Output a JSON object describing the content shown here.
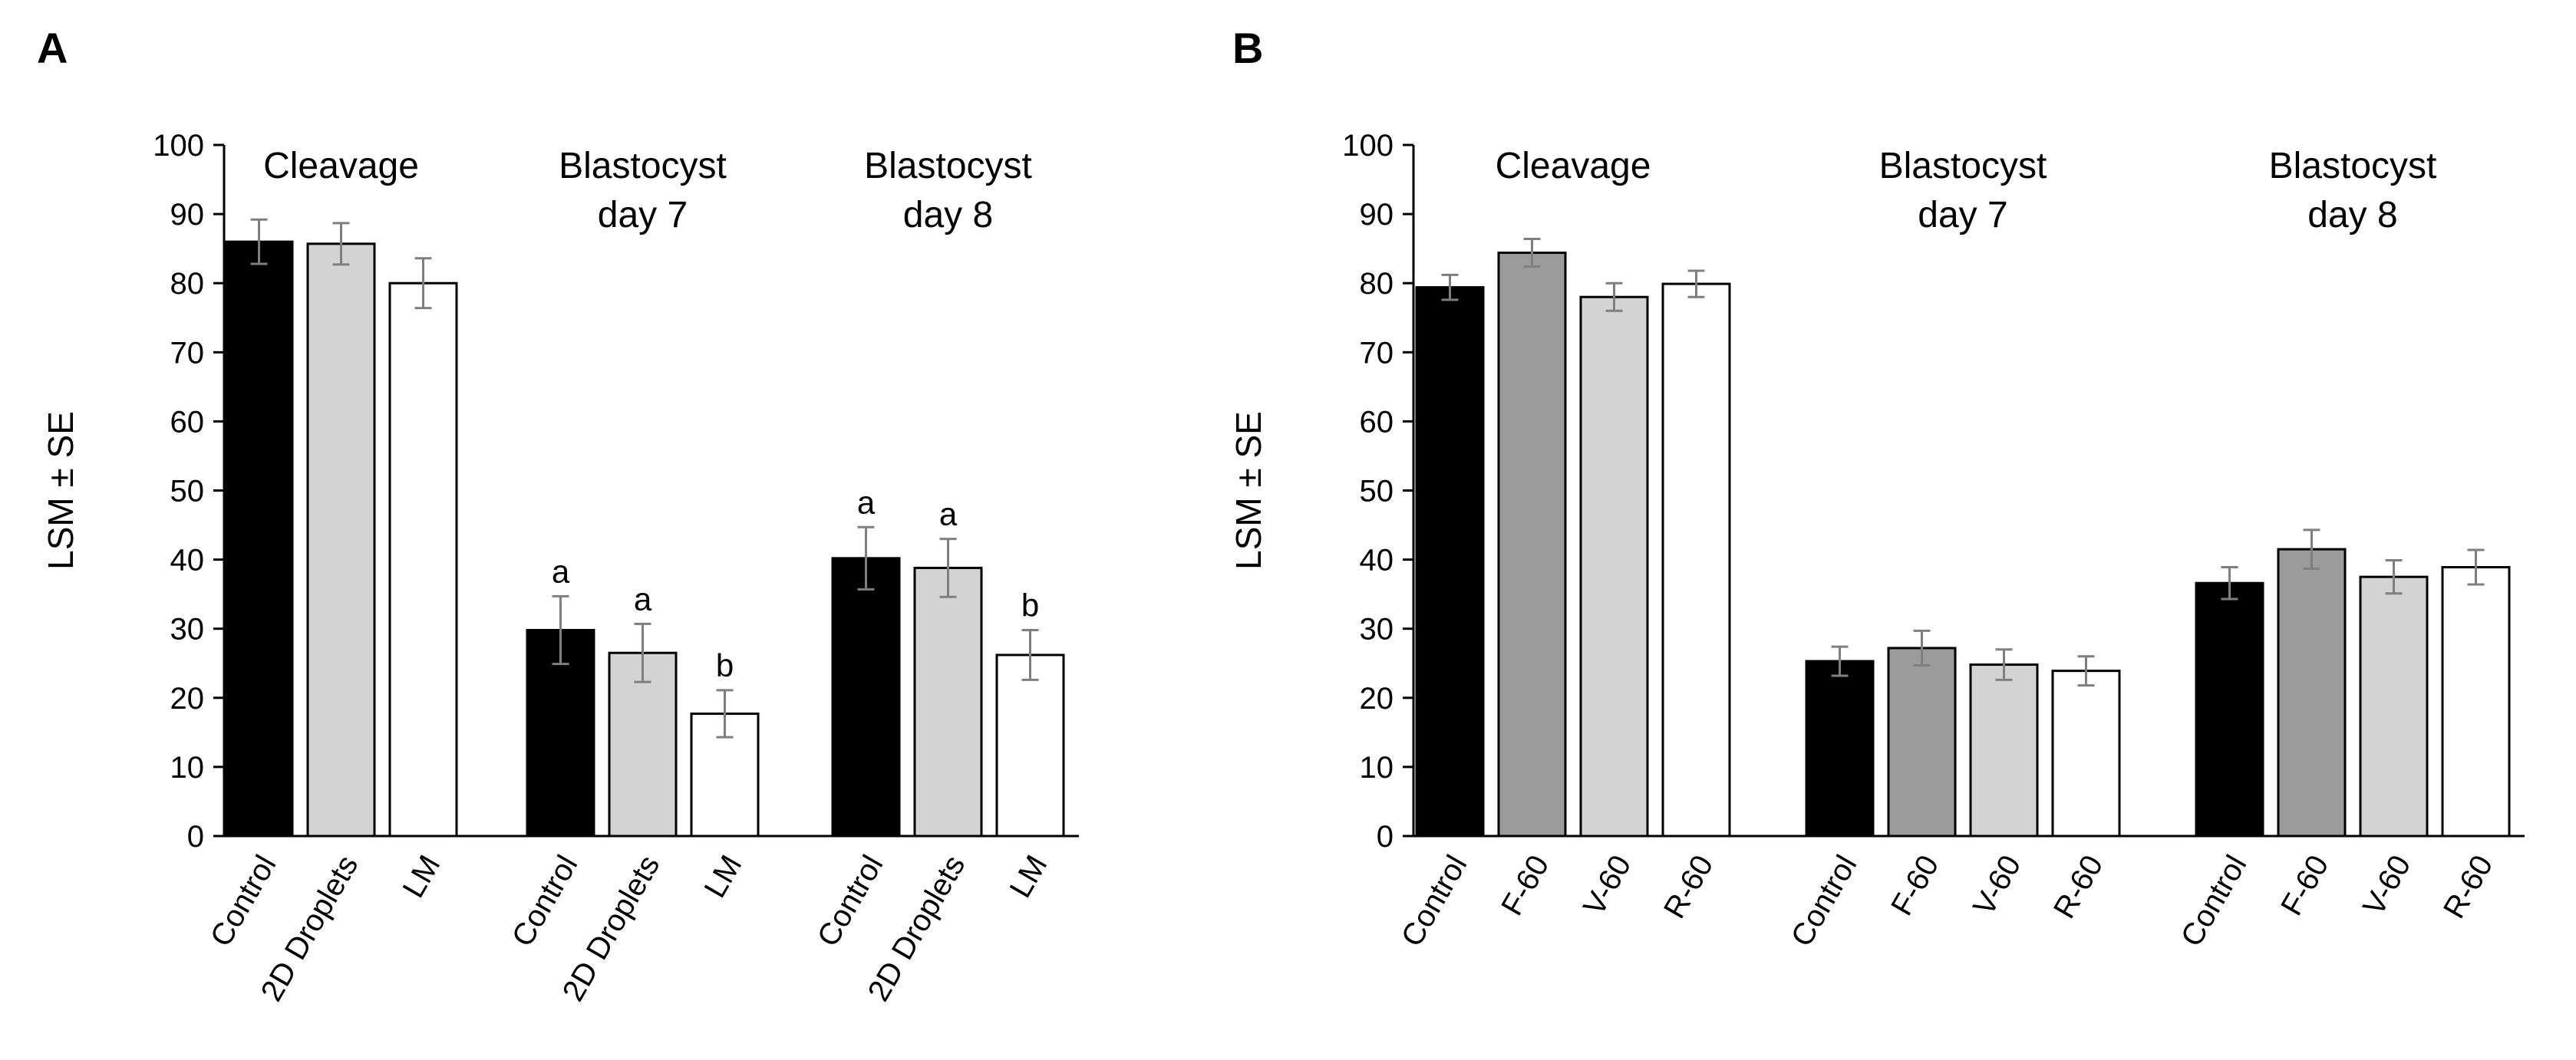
{
  "chart_data": [
    {
      "type": "bar",
      "panel": "A",
      "ylabel": "LSM ± SE",
      "ylim": [
        0,
        100
      ],
      "yticks": [
        0,
        10,
        20,
        30,
        40,
        50,
        60,
        70,
        80,
        90,
        100
      ],
      "groups": [
        {
          "title": [
            "Cleavage"
          ],
          "categories": [
            "Control",
            "2D Droplets",
            "LM"
          ],
          "values": [
            86,
            85.7,
            80
          ],
          "errors": [
            3.2,
            3,
            3.6
          ],
          "letters": [
            "",
            "",
            ""
          ]
        },
        {
          "title": [
            "Blastocyst",
            "day 7"
          ],
          "categories": [
            "Control",
            "2D Droplets",
            "LM"
          ],
          "values": [
            29.8,
            26.5,
            17.7
          ],
          "errors": [
            4.9,
            4.2,
            3.4
          ],
          "letters": [
            "a",
            "a",
            "b"
          ]
        },
        {
          "title": [
            "Blastocyst",
            "day 8"
          ],
          "categories": [
            "Control",
            "2D Droplets",
            "LM"
          ],
          "values": [
            40.2,
            38.8,
            26.2
          ],
          "errors": [
            4.5,
            4.2,
            3.6
          ],
          "letters": [
            "a",
            "a",
            "b"
          ]
        }
      ],
      "bar_colors": [
        "#000000",
        "#d3d3d3",
        "#ffffff"
      ]
    },
    {
      "type": "bar",
      "panel": "B",
      "ylabel": "LSM ± SE",
      "ylim": [
        0,
        100
      ],
      "yticks": [
        0,
        10,
        20,
        30,
        40,
        50,
        60,
        70,
        80,
        90,
        100
      ],
      "groups": [
        {
          "title": [
            "Cleavage"
          ],
          "categories": [
            "Control",
            "F-60",
            "V-60",
            "R-60"
          ],
          "values": [
            79.4,
            84.4,
            78,
            79.9
          ],
          "errors": [
            1.8,
            2,
            2,
            1.9
          ],
          "letters": [
            "",
            "",
            "",
            ""
          ]
        },
        {
          "title": [
            "Blastocyst",
            "day 7"
          ],
          "categories": [
            "Control",
            "F-60",
            "V-60",
            "R-60"
          ],
          "values": [
            25.3,
            27.2,
            24.8,
            23.9
          ],
          "errors": [
            2.1,
            2.5,
            2.2,
            2.1
          ],
          "letters": [
            "",
            "",
            "",
            ""
          ]
        },
        {
          "title": [
            "Blastocyst",
            "day 8"
          ],
          "categories": [
            "Control",
            "F-60",
            "V-60",
            "R-60"
          ],
          "values": [
            36.6,
            41.5,
            37.5,
            38.9
          ],
          "errors": [
            2.3,
            2.8,
            2.4,
            2.5
          ],
          "letters": [
            "",
            "",
            "",
            ""
          ]
        }
      ],
      "bar_colors": [
        "#000000",
        "#9b9b9b",
        "#d3d3d3",
        "#ffffff"
      ]
    }
  ]
}
